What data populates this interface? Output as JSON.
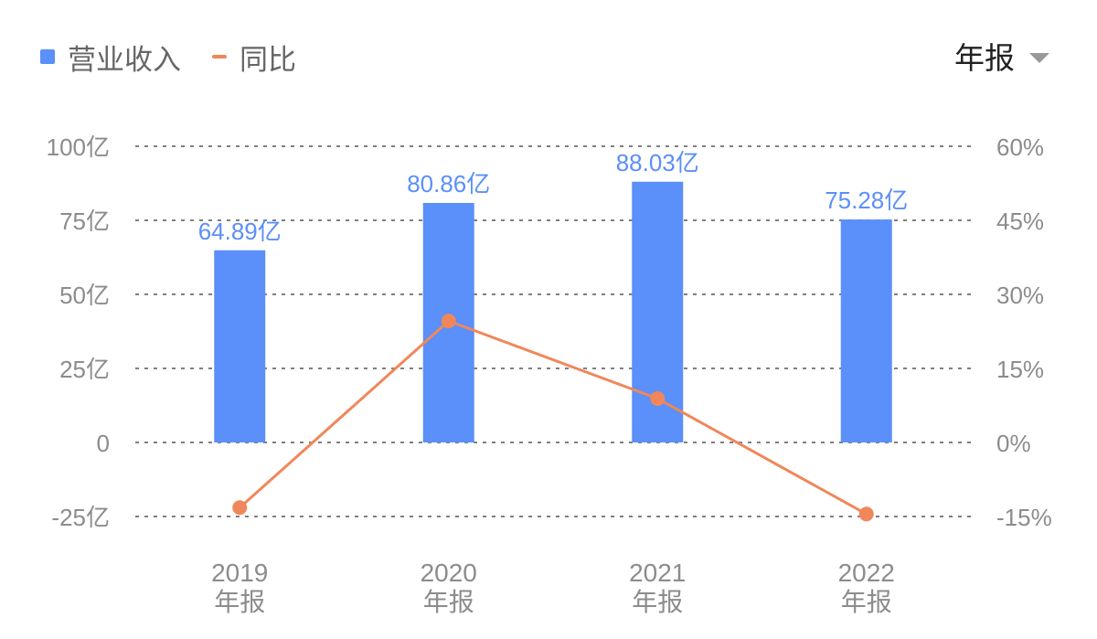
{
  "legend": {
    "revenue_label": "营业收入",
    "yoy_label": "同比"
  },
  "period_select": {
    "label": "年报"
  },
  "colors": {
    "bar": "#5b8ff9",
    "line": "#f0875a",
    "axis_text": "#8c8c8c",
    "grid": "#7f7f7f"
  },
  "chart_data": {
    "type": "bar",
    "categories": [
      "2019",
      "2020",
      "2021",
      "2022"
    ],
    "category_sublabel": "年报",
    "series": [
      {
        "name": "营业收入",
        "type": "bar",
        "axis": "left",
        "values": [
          64.89,
          80.86,
          88.03,
          75.28
        ],
        "data_labels": [
          "64.89亿",
          "80.86亿",
          "88.03亿",
          "75.28亿"
        ]
      },
      {
        "name": "同比",
        "type": "line",
        "axis": "right",
        "values": [
          -13.2,
          24.6,
          8.9,
          -14.5
        ]
      }
    ],
    "y_left": {
      "min": -25,
      "max": 100,
      "ticks": [
        100,
        75,
        50,
        25,
        0,
        -25
      ],
      "tick_labels": [
        "100亿",
        "75亿",
        "50亿",
        "25亿",
        "0",
        "-25亿"
      ]
    },
    "y_right": {
      "min": -15,
      "max": 60,
      "ticks": [
        60,
        45,
        30,
        15,
        0,
        -15
      ],
      "tick_labels": [
        "60%",
        "45%",
        "30%",
        "15%",
        "0%",
        "-15%"
      ]
    },
    "grid": "dashed horizontal",
    "legend_position": "top-left"
  }
}
